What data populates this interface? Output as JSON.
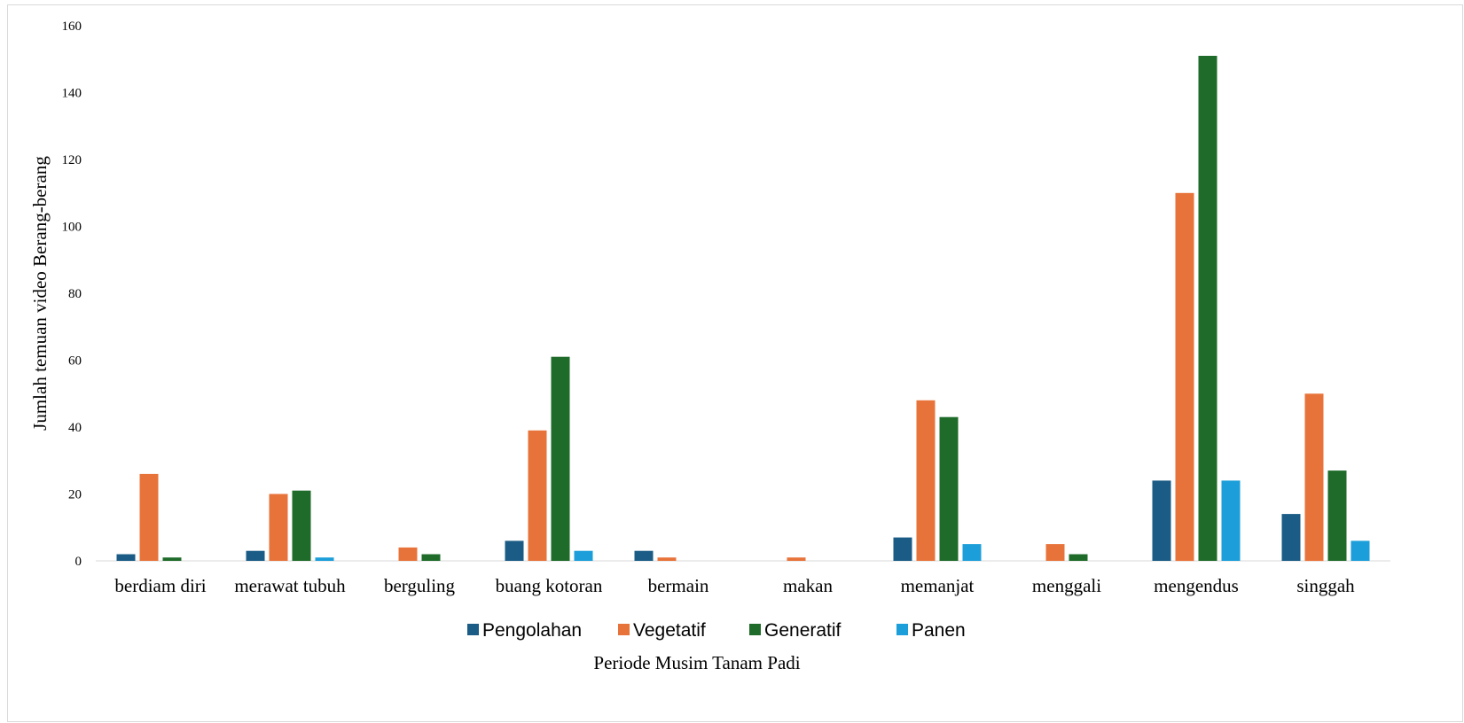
{
  "chart_data": {
    "type": "bar",
    "title": "",
    "xlabel": "Periode Musim Tanam Padi",
    "ylabel": "Jumlah temuan video Berang-berang",
    "ylim": [
      0,
      160
    ],
    "yticks": [
      0,
      20,
      40,
      60,
      80,
      100,
      120,
      140,
      160
    ],
    "grid": false,
    "legend_position": "bottom",
    "categories": [
      "berdiam diri",
      "merawat tubuh",
      "berguling",
      "buang kotoran",
      "bermain",
      "makan",
      "memanjat",
      "menggali",
      "mengendus",
      "singgah"
    ],
    "series": [
      {
        "name": "Pengolahan",
        "color": "#1a5c85",
        "values": [
          2,
          3,
          0,
          6,
          3,
          0,
          7,
          0,
          24,
          14
        ]
      },
      {
        "name": "Vegetatif",
        "color": "#e8733a",
        "values": [
          26,
          20,
          4,
          39,
          1,
          1,
          48,
          5,
          110,
          50
        ]
      },
      {
        "name": "Generatif",
        "color": "#1e6b2a",
        "values": [
          1,
          21,
          2,
          61,
          0,
          0,
          43,
          2,
          151,
          27
        ]
      },
      {
        "name": "Panen",
        "color": "#1b9ed9",
        "values": [
          0,
          1,
          0,
          3,
          0,
          0,
          5,
          0,
          24,
          6
        ]
      }
    ]
  }
}
